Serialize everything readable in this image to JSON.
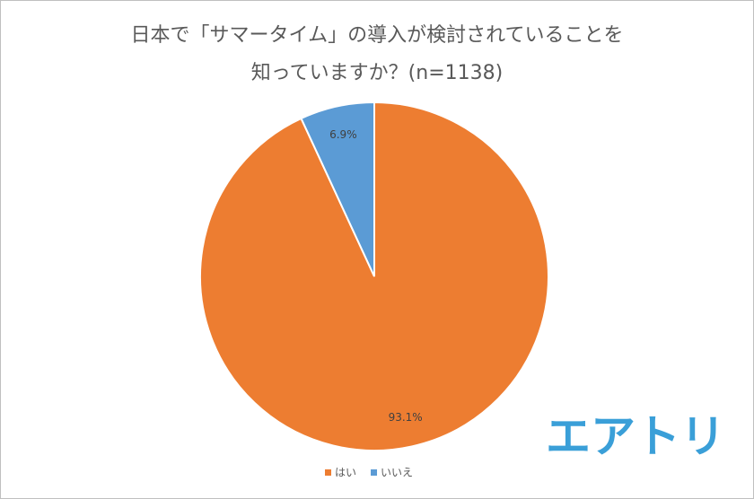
{
  "chart_data": {
    "type": "pie",
    "title": [
      "日本で「サマータイム」の導入が検討されていることを",
      "知っていますか？(n=1138)"
    ],
    "categories": [
      "はい",
      "いいえ"
    ],
    "values": [
      93.1,
      6.9
    ],
    "value_labels": [
      "93.1%",
      "6.9%"
    ],
    "colors": [
      "#ED7D31",
      "#5B9BD5"
    ],
    "legend": "bottom",
    "logo": "エアトリ"
  }
}
